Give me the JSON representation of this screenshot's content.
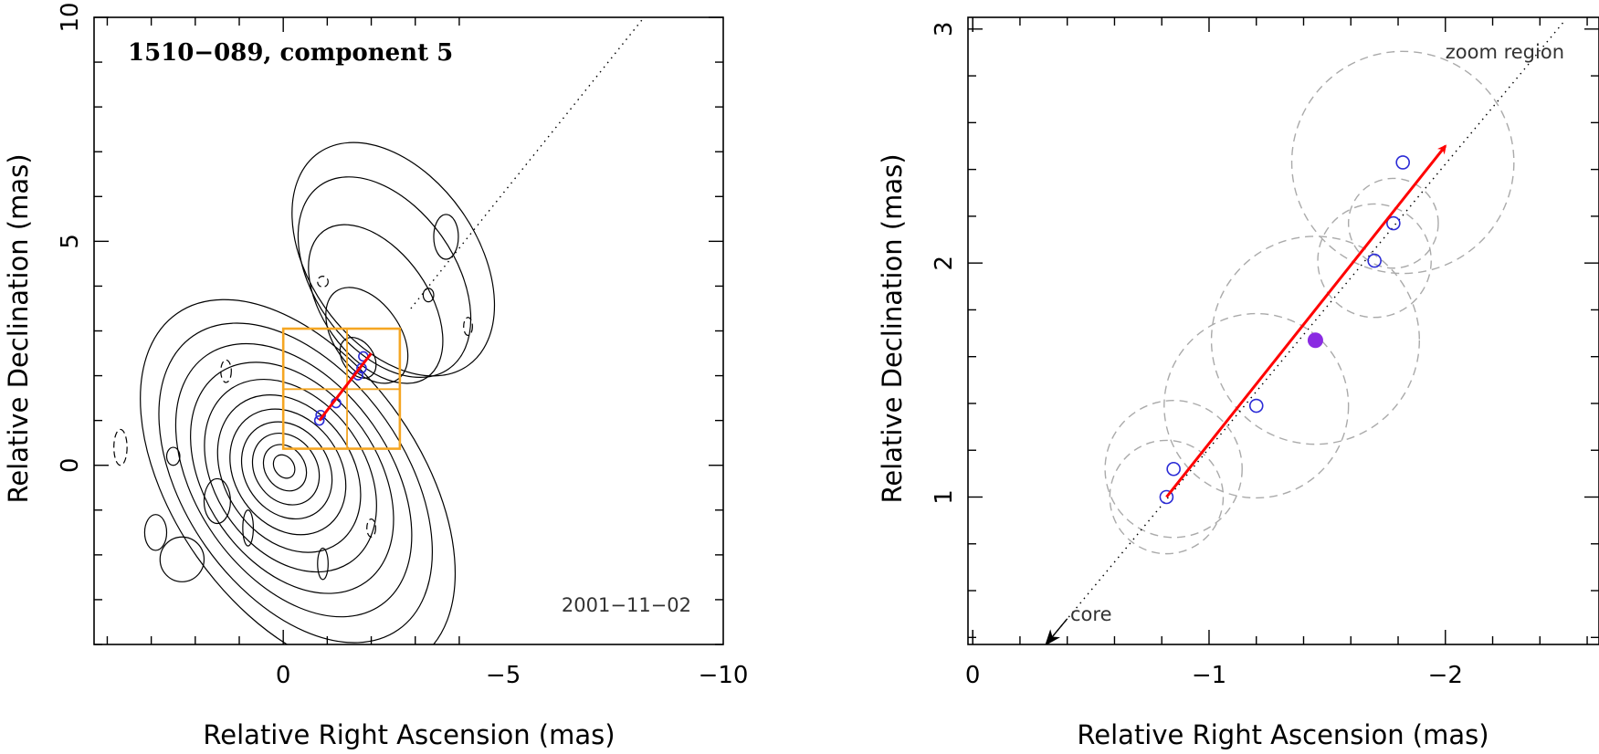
{
  "chart_data": [
    {
      "type": "contour",
      "title": "1510−089, component 5",
      "annotation": "2001−11−02",
      "xlabel": "Relative Right Ascension (mas)",
      "ylabel": "Relative Declination (mas)",
      "xlim": [
        4.3,
        -10.0
      ],
      "ylim": [
        -4.0,
        10.0
      ],
      "xticks": [
        0,
        -5,
        -10
      ],
      "xtick_labels": [
        "0",
        "−5",
        "−10"
      ],
      "yticks": [
        0,
        5,
        10
      ],
      "ytick_labels": [
        "0",
        "5",
        "10"
      ],
      "core": [
        0,
        0
      ],
      "contour_radii": [
        [
          0.22,
          0.28
        ],
        [
          0.45,
          0.55
        ],
        [
          0.7,
          0.85
        ],
        [
          0.95,
          1.15
        ],
        [
          1.2,
          1.5
        ],
        [
          1.45,
          1.9
        ],
        [
          1.7,
          2.35
        ],
        [
          1.95,
          2.85
        ],
        [
          2.2,
          3.4
        ],
        [
          2.5,
          4.0
        ],
        [
          2.8,
          4.7
        ]
      ],
      "jet_contours": [
        {
          "cx": -1.7,
          "cy": 2.4,
          "rx": 0.35,
          "ry": 0.5
        },
        {
          "cx": -1.9,
          "cy": 2.9,
          "rx": 0.75,
          "ry": 1.2
        },
        {
          "cx": -2.1,
          "cy": 3.6,
          "rx": 1.2,
          "ry": 2.0
        },
        {
          "cx": -2.3,
          "cy": 4.2,
          "rx": 1.6,
          "ry": 2.5
        },
        {
          "cx": -2.5,
          "cy": 4.6,
          "rx": 1.9,
          "ry": 2.9
        }
      ],
      "negative_contours": [
        {
          "cx": -0.9,
          "cy": 4.1,
          "rx": 0.12,
          "ry": 0.12
        },
        {
          "cx": 1.3,
          "cy": 2.1,
          "rx": 0.12,
          "ry": 0.25
        },
        {
          "cx": 3.7,
          "cy": 0.4,
          "rx": 0.15,
          "ry": 0.4
        },
        {
          "cx": -4.2,
          "cy": 3.1,
          "rx": 0.1,
          "ry": 0.2
        },
        {
          "cx": -2.0,
          "cy": -1.4,
          "rx": 0.1,
          "ry": 0.2
        }
      ],
      "positive_blobs": [
        {
          "cx": -3.7,
          "cy": 5.1,
          "rx": 0.28,
          "ry": 0.5
        },
        {
          "cx": -3.3,
          "cy": 3.8,
          "rx": 0.12,
          "ry": 0.15
        },
        {
          "cx": 1.5,
          "cy": -0.8,
          "rx": 0.3,
          "ry": 0.5
        },
        {
          "cx": 2.9,
          "cy": -1.5,
          "rx": 0.25,
          "ry": 0.4
        },
        {
          "cx": 2.3,
          "cy": -2.1,
          "rx": 0.5,
          "ry": 0.5
        },
        {
          "cx": 0.8,
          "cy": -1.4,
          "rx": 0.12,
          "ry": 0.4
        },
        {
          "cx": -0.9,
          "cy": -2.2,
          "rx": 0.12,
          "ry": 0.35
        },
        {
          "cx": 2.5,
          "cy": 0.2,
          "rx": 0.15,
          "ry": 0.2
        }
      ],
      "zoom_box": {
        "x": [
          0,
          -2.65
        ],
        "y": [
          0.37,
          3.05
        ],
        "split_x": -1.45,
        "split_y": 1.7
      },
      "jet_direction_line": {
        "from": [
          -2.9,
          3.5
        ],
        "to": [
          -8.2,
          10.0
        ]
      },
      "positions": [
        [
          -0.82,
          1.0
        ],
        [
          -0.85,
          1.12
        ],
        [
          -1.2,
          1.39
        ],
        [
          -1.7,
          2.01
        ],
        [
          -1.78,
          2.17
        ],
        [
          -1.82,
          2.43
        ]
      ],
      "velocity_vector": {
        "from": [
          -0.82,
          1.0
        ],
        "to": [
          -2.0,
          2.5
        ]
      }
    },
    {
      "type": "scatter",
      "annotations": [
        "zoom region",
        "core"
      ],
      "xlabel": "Relative Right Ascension (mas)",
      "ylabel": "Relative Declination (mas)",
      "xlim": [
        0.02,
        -2.65
      ],
      "ylim": [
        0.37,
        3.05
      ],
      "xticks": [
        0,
        -1,
        -2
      ],
      "xtick_labels": [
        "0",
        "−1",
        "−2"
      ],
      "yticks": [
        1,
        2,
        3
      ],
      "ytick_labels": [
        "1",
        "2",
        "3"
      ],
      "positions": [
        [
          -0.82,
          1.0
        ],
        [
          -0.85,
          1.12
        ],
        [
          -1.2,
          1.39
        ],
        [
          -1.7,
          2.01
        ],
        [
          -1.78,
          2.17
        ],
        [
          -1.82,
          2.43
        ]
      ],
      "uncertainty_circles": [
        {
          "x": -0.82,
          "y": 1.0,
          "r": 0.24
        },
        {
          "x": -0.85,
          "y": 1.12,
          "r": 0.29
        },
        {
          "x": -1.2,
          "y": 1.39,
          "r": 0.39
        },
        {
          "x": -1.45,
          "y": 1.67,
          "r": 0.44
        },
        {
          "x": -1.7,
          "y": 2.01,
          "r": 0.24
        },
        {
          "x": -1.78,
          "y": 2.17,
          "r": 0.19
        },
        {
          "x": -1.82,
          "y": 2.43,
          "r": 0.47
        }
      ],
      "mean_position": [
        -1.45,
        1.67
      ],
      "velocity_vector": {
        "from": [
          -0.82,
          1.0
        ],
        "to": [
          -2.0,
          2.5
        ]
      },
      "jet_direction_line": {
        "from": [
          -0.31,
          0.37
        ],
        "to": [
          -2.5,
          3.03
        ]
      },
      "core_arrow": {
        "from": [
          -0.4,
          0.48
        ],
        "to": [
          -0.31,
          0.37
        ]
      }
    }
  ]
}
